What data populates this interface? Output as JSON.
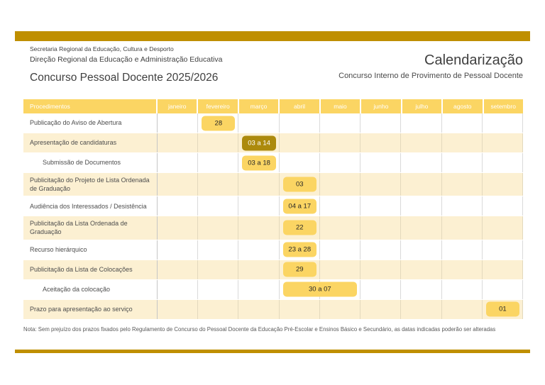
{
  "header": {
    "org_line1": "Secretaria Regional da Educação, Cultura e Desporto",
    "org_line2": "Direção Regional da Educação e Administração Educativa",
    "left_title": "Concurso Pessoal Docente 2025/2026",
    "right_title": "Calendarização",
    "right_subtitle": "Concurso Interno de Provimento de Pessoal Docente"
  },
  "table": {
    "first_column_header": "Procedimentos",
    "months": [
      "janeiro",
      "fevereiro",
      "março",
      "abril",
      "maio",
      "junho",
      "julho",
      "agosto",
      "setembro"
    ],
    "rows": [
      {
        "label": "Publicação do Aviso de Abertura",
        "indent": false,
        "shaded": false,
        "pill": {
          "text": "28",
          "month": "fevereiro",
          "col": 2,
          "span": 1,
          "style": "light"
        }
      },
      {
        "label": "Apresentação de candidaturas",
        "indent": false,
        "shaded": true,
        "pill": {
          "text": "03 a 14",
          "month": "março",
          "col": 3,
          "span": 1,
          "style": "dark"
        }
      },
      {
        "label": "Submissão de Documentos",
        "indent": true,
        "shaded": false,
        "pill": {
          "text": "03 a 18",
          "month": "março",
          "col": 3,
          "span": 1,
          "style": "light"
        }
      },
      {
        "label": "Publicitação do Projeto de Lista Ordenada de Graduação",
        "indent": false,
        "shaded": true,
        "pill": {
          "text": "03",
          "month": "abril",
          "col": 4,
          "span": 1,
          "style": "light"
        }
      },
      {
        "label": "Audiência dos Interessados / Desistência",
        "indent": false,
        "shaded": false,
        "pill": {
          "text": "04 a 17",
          "month": "abril",
          "col": 4,
          "span": 1,
          "style": "light"
        }
      },
      {
        "label": "Publicitação da Lista Ordenada de Graduação",
        "indent": false,
        "shaded": true,
        "pill": {
          "text": "22",
          "month": "abril",
          "col": 4,
          "span": 1,
          "style": "light"
        }
      },
      {
        "label": "Recurso hierárquico",
        "indent": false,
        "shaded": false,
        "pill": {
          "text": "23 a 28",
          "month": "abril",
          "col": 4,
          "span": 1,
          "style": "light"
        }
      },
      {
        "label": "Publicitação da Lista de Colocações",
        "indent": false,
        "shaded": true,
        "pill": {
          "text": "29",
          "month": "abril",
          "col": 4,
          "span": 1,
          "style": "light"
        }
      },
      {
        "label": "Aceitação da colocação",
        "indent": true,
        "shaded": false,
        "pill": {
          "text": "30 a 07",
          "month": "abril-maio",
          "col": 4,
          "span": 2,
          "style": "light"
        }
      },
      {
        "label": "Prazo para apresentação ao serviço",
        "indent": false,
        "shaded": true,
        "pill": {
          "text": "01",
          "month": "setembro",
          "col": 9,
          "span": 1,
          "style": "light"
        }
      }
    ]
  },
  "note": "Nota: Sem prejuízo dos prazos fixados pelo Regulamento de Concurso do Pessoal Docente da Educação Pré-Escolar e Ensinos Básico e Secundário, as datas indicadas poderão ser alteradas",
  "colors": {
    "bar_gold": "#BF8F00",
    "highlight_yellow": "#FBD563",
    "highlight_dark": "#AC8A0D",
    "row_shade": "#FCF0D2",
    "grid_line": "#DADADA",
    "header_text": "#FFFFFF"
  }
}
